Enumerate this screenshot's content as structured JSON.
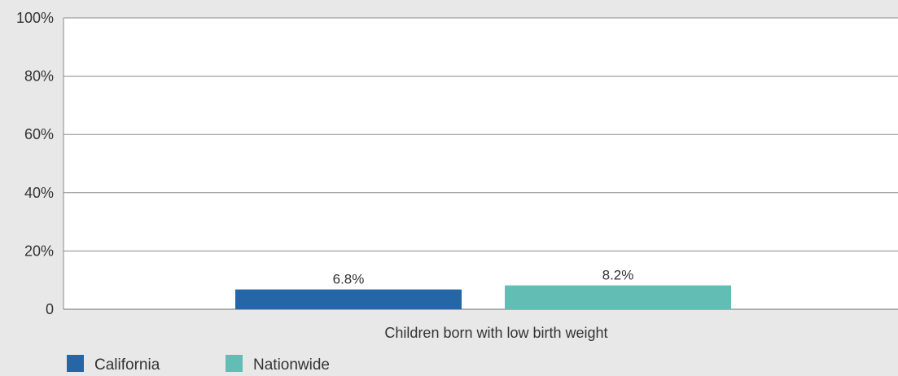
{
  "chart_data": {
    "type": "bar",
    "categories": [
      "Children born with low birth weight"
    ],
    "series": [
      {
        "name": "California",
        "values": [
          6.8
        ],
        "value_labels": [
          "6.8%"
        ],
        "color": "#2566a6"
      },
      {
        "name": "Nationwide",
        "values": [
          8.2
        ],
        "value_labels": [
          "8.2%"
        ],
        "color": "#62bdb4"
      }
    ],
    "ylim": [
      0,
      100
    ],
    "yticks": [
      0,
      20,
      40,
      60,
      80,
      100
    ],
    "ytick_labels": [
      "0",
      "20%",
      "40%",
      "60%",
      "80%",
      "100%"
    ],
    "grid": true,
    "legend_position": "bottom-left",
    "title": "",
    "xlabel": "",
    "ylabel": ""
  }
}
